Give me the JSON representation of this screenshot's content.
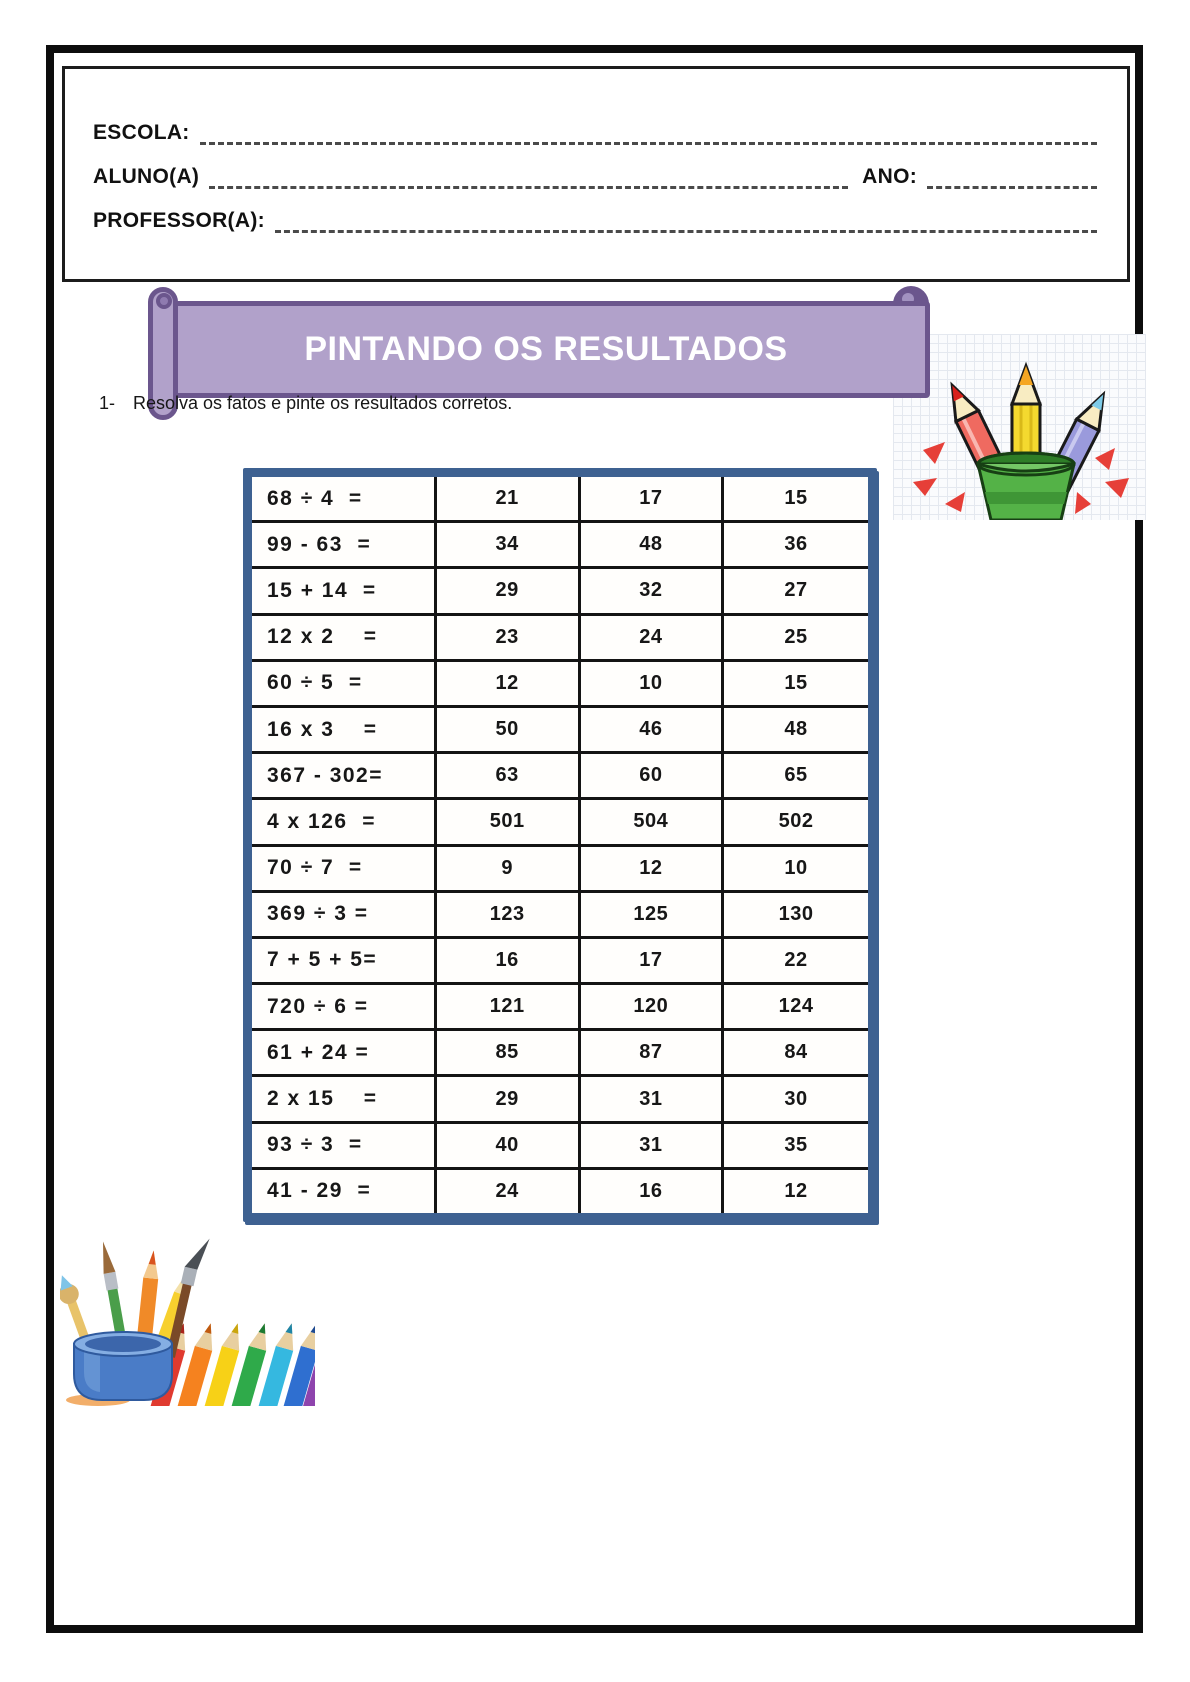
{
  "header": {
    "fields": [
      {
        "label": "ESCOLA:"
      },
      {
        "label": "ALUNO(A)",
        "label2": "ANO:"
      },
      {
        "label": "PROFESSOR(A):"
      }
    ]
  },
  "banner": {
    "title": "PINTANDO OS RESULTADOS"
  },
  "instruction": {
    "number": "1-",
    "text": "Resolva os fatos e pinte os resultados corretos."
  },
  "worksheet_table": {
    "rows": [
      {
        "expression": "68 ÷ 4  =",
        "options": [
          "21",
          "17",
          "15"
        ]
      },
      {
        "expression": "99 - 63  =",
        "options": [
          "34",
          "48",
          "36"
        ]
      },
      {
        "expression": "15 + 14  =",
        "options": [
          "29",
          "32",
          "27"
        ]
      },
      {
        "expression": "12 x 2    =",
        "options": [
          "23",
          "24",
          "25"
        ]
      },
      {
        "expression": "60 ÷ 5  =",
        "options": [
          "12",
          "10",
          "15"
        ]
      },
      {
        "expression": "16 x 3    =",
        "options": [
          "50",
          "46",
          "48"
        ]
      },
      {
        "expression": "367 - 302=",
        "options": [
          "63",
          "60",
          "65"
        ]
      },
      {
        "expression": "4 x 126  =",
        "options": [
          "501",
          "504",
          "502"
        ]
      },
      {
        "expression": "70 ÷ 7  =",
        "options": [
          "9",
          "12",
          "10"
        ]
      },
      {
        "expression": "369 ÷ 3 =",
        "options": [
          "123",
          "125",
          "130"
        ]
      },
      {
        "expression": "7 + 5 + 5=",
        "options": [
          "16",
          "17",
          "22"
        ]
      },
      {
        "expression": "720 ÷ 6 =",
        "options": [
          "121",
          "120",
          "124"
        ]
      },
      {
        "expression": "61 + 24 =",
        "options": [
          "85",
          "87",
          "84"
        ]
      },
      {
        "expression": "2 x 15    =",
        "options": [
          "29",
          "31",
          "30"
        ]
      },
      {
        "expression": "93 ÷ 3  =",
        "options": [
          "40",
          "31",
          "35"
        ]
      },
      {
        "expression": "41 - 29  =",
        "options": [
          "24",
          "16",
          "12"
        ]
      }
    ]
  },
  "images": {
    "top_right": "three-colored-pencils-in-green-cup",
    "bottom_left": "paintbrushes-and-rainbow-pencils-in-blue-cup"
  },
  "colors": {
    "table_border": "#3e6191",
    "banner_fill": "#b1a1ca",
    "banner_border": "#6b568d",
    "page_frame": "#0d0d0d"
  }
}
